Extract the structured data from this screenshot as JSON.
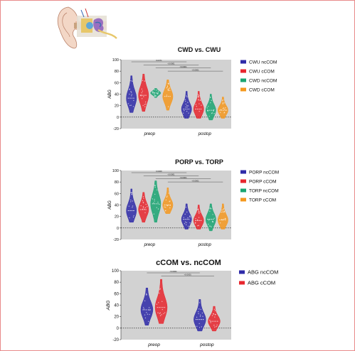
{
  "colors": {
    "blue": "#2e2aa8",
    "red": "#e8262e",
    "green": "#1aa572",
    "orange": "#f5981e",
    "plot_bg": "#d2d2d2"
  },
  "illustration": {
    "name": "ear-anatomy-illustration"
  },
  "chart_data": [
    {
      "type": "violin",
      "title": "CWD vs. CWU",
      "ylabel": "ABG",
      "ylim": [
        -20,
        100
      ],
      "yticks": [
        -20,
        0,
        20,
        40,
        60,
        80,
        100
      ],
      "categories": [
        "preop",
        "postop"
      ],
      "series": [
        {
          "name": "CWU ncCOM",
          "color": "#2e2aa8",
          "values": {
            "preop": 33,
            "postop": 14
          },
          "range": {
            "preop": [
              8,
              72
            ],
            "postop": [
              -2,
              45
            ]
          }
        },
        {
          "name": "CWU cCOM",
          "color": "#e8262e",
          "values": {
            "preop": 38,
            "postop": 14
          },
          "range": {
            "preop": [
              10,
              75
            ],
            "postop": [
              -2,
              45
            ]
          }
        },
        {
          "name": "CWD ncCOM",
          "color": "#1aa572",
          "values": {
            "preop": 42,
            "postop": 12
          },
          "range": {
            "preop": [
              34,
              50
            ],
            "postop": [
              -5,
              40
            ]
          }
        },
        {
          "name": "CWD cCOM",
          "color": "#f5981e",
          "values": {
            "preop": 36,
            "postop": 12
          },
          "range": {
            "preop": [
              12,
              65
            ],
            "postop": [
              -2,
              35
            ]
          }
        }
      ],
      "significance": [
        "0.0371",
        "<0.0001",
        "<0.0001",
        "<0.0001"
      ],
      "legend": "right"
    },
    {
      "type": "violin",
      "title": "PORP vs. TORP",
      "ylabel": "ABG",
      "ylim": [
        -20,
        100
      ],
      "yticks": [
        -20,
        0,
        20,
        40,
        60,
        80,
        100
      ],
      "categories": [
        "preop",
        "postop"
      ],
      "series": [
        {
          "name": "PORP ncCOM",
          "color": "#2e2aa8",
          "values": {
            "preop": 30,
            "postop": 15
          },
          "range": {
            "preop": [
              10,
              68
            ],
            "postop": [
              -2,
              42
            ]
          }
        },
        {
          "name": "PORP cCOM",
          "color": "#e8262e",
          "values": {
            "preop": 32,
            "postop": 13
          },
          "range": {
            "preop": [
              10,
              62
            ],
            "postop": [
              -2,
              40
            ]
          }
        },
        {
          "name": "TORP ncCOM",
          "color": "#1aa572",
          "values": {
            "preop": 42,
            "postop": 15
          },
          "range": {
            "preop": [
              10,
              82
            ],
            "postop": [
              -5,
              42
            ]
          }
        },
        {
          "name": "TORP cCOM",
          "color": "#f5981e",
          "values": {
            "preop": 40,
            "postop": 14
          },
          "range": {
            "preop": [
              25,
              70
            ],
            "postop": [
              -2,
              42
            ]
          }
        }
      ],
      "significance": [
        "0.0006",
        "<0.0001",
        "<0.0001",
        "<0.0001"
      ],
      "legend": "right"
    },
    {
      "type": "violin",
      "title": "cCOM vs. ncCOM",
      "ylabel": "ABG",
      "ylim": [
        -20,
        100
      ],
      "yticks": [
        -20,
        0,
        20,
        40,
        60,
        80,
        100
      ],
      "categories": [
        "preop",
        "postop"
      ],
      "series": [
        {
          "name": "ABG ncCOM",
          "color": "#2e2aa8",
          "values": {
            "preop": 32,
            "postop": 15
          },
          "range": {
            "preop": [
              5,
              70
            ],
            "postop": [
              -5,
              50
            ]
          }
        },
        {
          "name": "ABG cCOM",
          "color": "#e8262e",
          "values": {
            "preop": 36,
            "postop": 12
          },
          "range": {
            "preop": [
              8,
              85
            ],
            "postop": [
              -5,
              38
            ]
          }
        }
      ],
      "significance": [
        "<0.0001",
        "<0.0001"
      ],
      "legend": "right"
    }
  ]
}
